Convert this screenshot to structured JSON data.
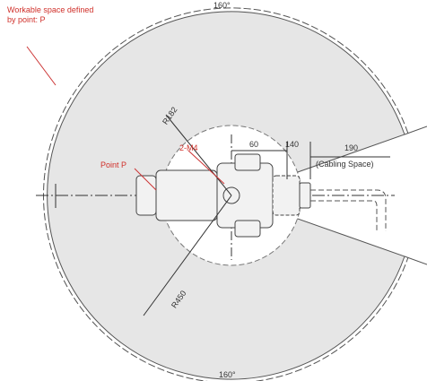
{
  "annotations": {
    "workable_space": [
      "Workable space defined",
      "by point: P"
    ],
    "top_angle": "160°",
    "bottom_angle": "160°",
    "inner_radius": "R182",
    "holes": "2-M4",
    "point": "Point P",
    "dim_60": "60",
    "dim_140": "140",
    "dim_190": "190",
    "cabling": "(Cabling Space)",
    "outer_radius": "R450"
  }
}
